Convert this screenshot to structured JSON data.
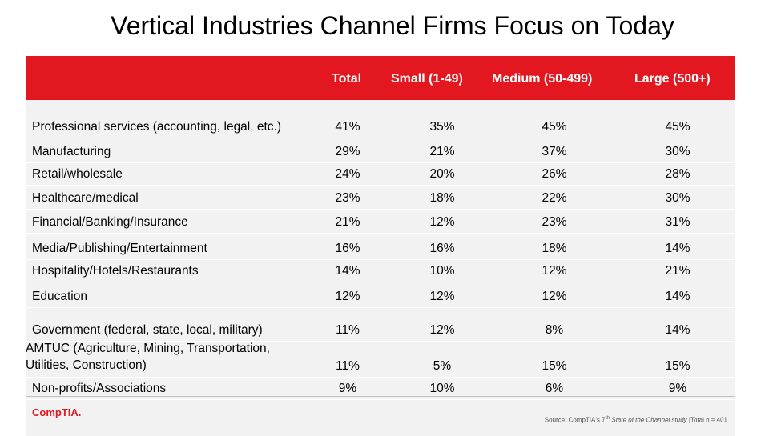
{
  "title": "Vertical Industries Channel Firms Focus on Today",
  "headers": [
    "",
    "Total",
    "Small (1-49)",
    "Medium (50-499)",
    "Large (500+)"
  ],
  "rows": [
    {
      "label": "Professional services (accounting, legal, etc.)",
      "values": [
        "41%",
        "35%",
        "45%",
        "45%"
      ]
    },
    {
      "label": "Manufacturing",
      "values": [
        "29%",
        "21%",
        "37%",
        "30%"
      ]
    },
    {
      "label": "Retail/wholesale",
      "values": [
        "24%",
        "20%",
        "26%",
        "28%"
      ]
    },
    {
      "label": "Healthcare/medical",
      "values": [
        "23%",
        "18%",
        "22%",
        "30%"
      ]
    },
    {
      "label": "Financial/Banking/Insurance",
      "values": [
        "21%",
        "12%",
        "23%",
        "31%"
      ]
    },
    {
      "label": "Media/Publishing/Entertainment",
      "values": [
        "16%",
        "16%",
        "18%",
        "14%"
      ]
    },
    {
      "label": "Hospitality/Hotels/Restaurants",
      "values": [
        "14%",
        "10%",
        "12%",
        "21%"
      ]
    },
    {
      "label": "Education",
      "values": [
        "12%",
        "12%",
        "12%",
        "14%"
      ]
    },
    {
      "label": "Government (federal, state, local, military)",
      "values": [
        "11%",
        "12%",
        "8%",
        "14%"
      ]
    },
    {
      "label": "AMTUC (Agriculture, Mining, Transportation, Utilities, Construction)",
      "values": [
        "11%",
        "5%",
        "15%",
        "15%"
      ]
    },
    {
      "label": "Non-profits/Associations",
      "values": [
        "9%",
        "10%",
        "6%",
        "9%"
      ]
    }
  ],
  "logo": "CompTIA.",
  "source_prefix": "Source: CompTIA's 7",
  "source_sup": "th",
  "source_title": "State of the Channel study",
  "source_suffix": " |Total n = 401",
  "colors": {
    "header_bg": "#e3171f",
    "row_bg": "#f2f2f2",
    "logo": "#e3171f"
  }
}
